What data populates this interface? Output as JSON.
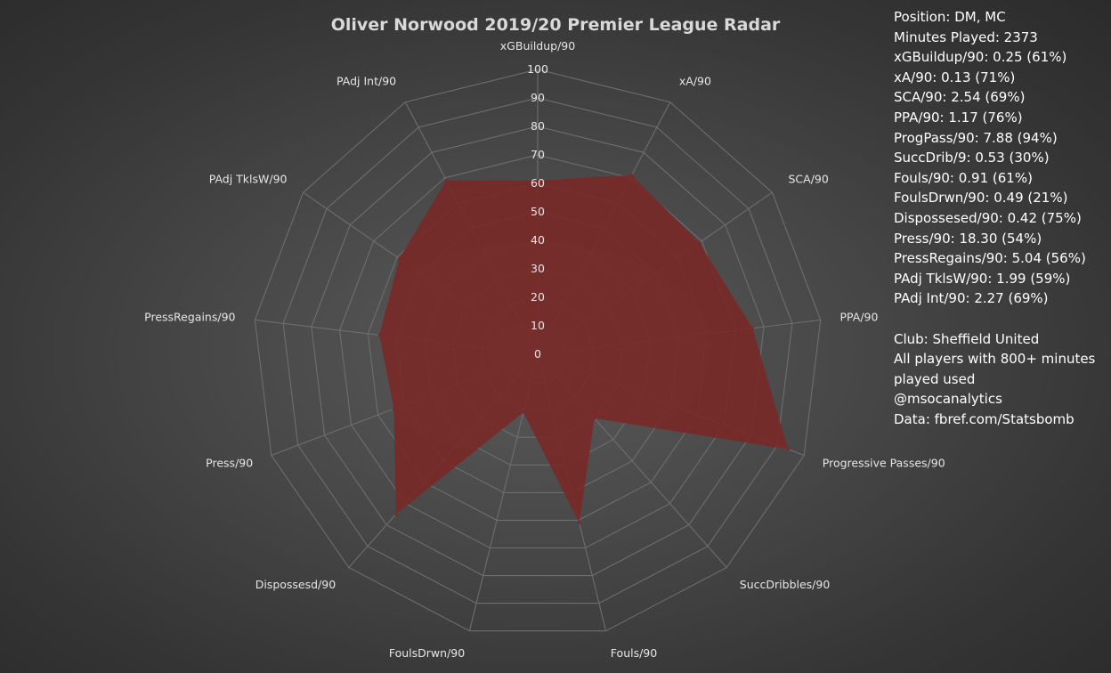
{
  "chart_data": {
    "type": "radar",
    "title": "Oliver Norwood 2019/20 Premier League Radar",
    "axes": [
      "xGBuildup/90",
      "xA/90",
      "SCA/90",
      "PPA/90",
      "Progressive Passes/90",
      "SuccDribbles/90",
      "Fouls/90",
      "FoulsDrwn/90",
      "Dispossesd/90",
      "Press/90",
      "PressRegains/90",
      "PAdj TklsW/90",
      "PAdj Int/90"
    ],
    "values": [
      61,
      71,
      69,
      76,
      94,
      30,
      61,
      21,
      75,
      54,
      56,
      59,
      69
    ],
    "rlim": [
      0,
      100
    ],
    "ticks": [
      "0",
      "10",
      "20",
      "30",
      "40",
      "50",
      "60",
      "70",
      "80",
      "90",
      "100"
    ],
    "series_color": "#7a2826",
    "grid": true
  },
  "info_panel": {
    "stats": [
      "Position: DM, MC",
      "Minutes Played: 2373",
      "xGBuildup/90: 0.25 (61%)",
      "xA/90: 0.13 (71%)",
      "SCA/90: 2.54 (69%)",
      "PPA/90: 1.17 (76%)",
      "ProgPass/90: 7.88 (94%)",
      "SuccDrib/9: 0.53 (30%)",
      "Fouls/90: 0.91 (61%)",
      "FoulsDrwn/90: 0.49 (21%)",
      "Dispossesed/90: 0.42 (75%)",
      "Press/90: 18.30 (54%)",
      "PressRegains/90: 5.04 (56%)",
      "PAdj TklsW/90: 1.99 (59%)",
      "PAdj Int/90: 2.27 (69%)"
    ],
    "club": "Club: Sheffield United",
    "note": "All players with 800+ minutes played used",
    "handle": "@msocanalytics",
    "source": "Data: fbref.com/Statsbomb"
  }
}
